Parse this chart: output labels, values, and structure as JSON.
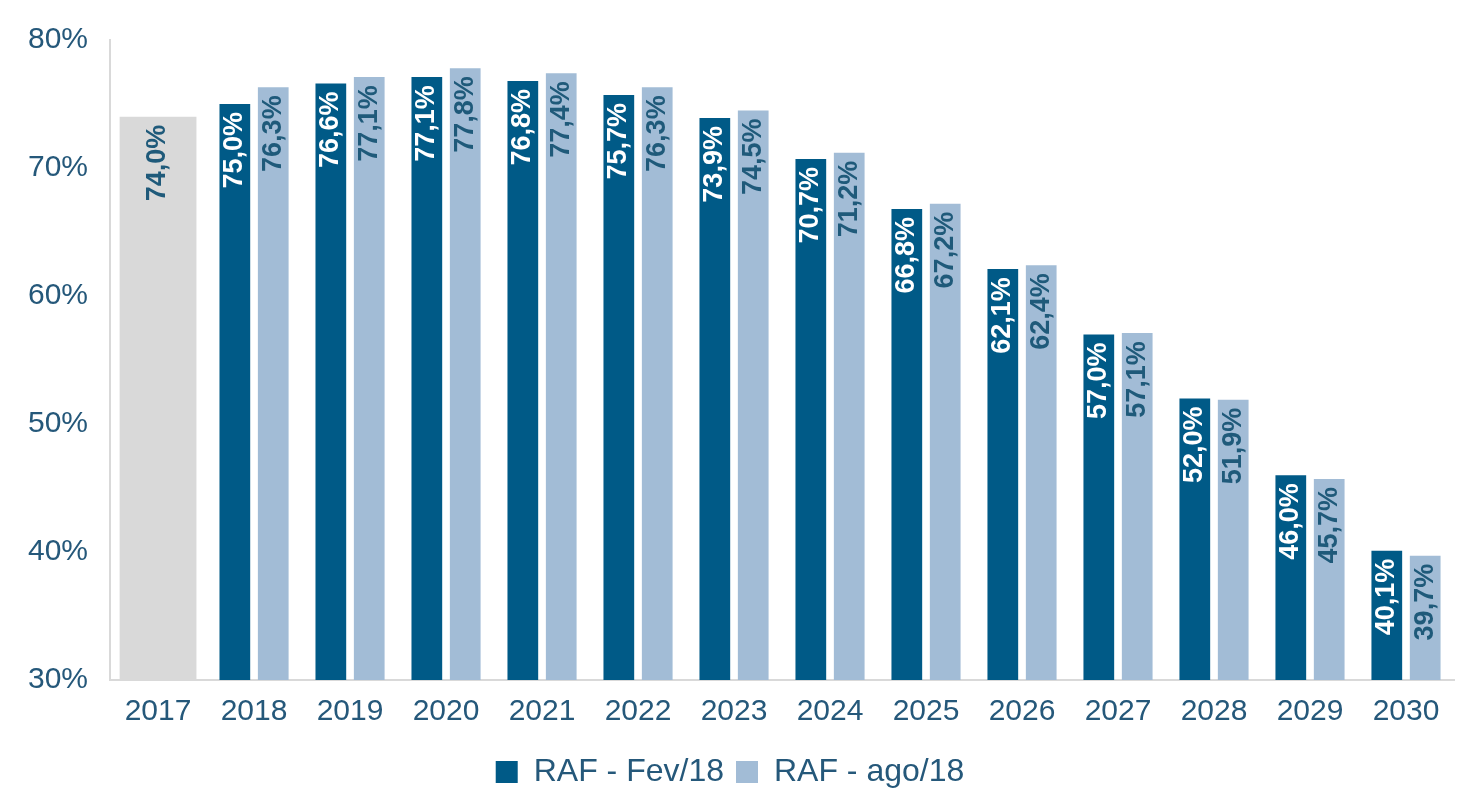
{
  "chart_data": {
    "type": "bar",
    "categories": [
      "2017",
      "2018",
      "2019",
      "2020",
      "2021",
      "2022",
      "2023",
      "2024",
      "2025",
      "2026",
      "2027",
      "2028",
      "2029",
      "2030"
    ],
    "series": [
      {
        "color": "#d9d9d9",
        "values": [
          74.0,
          null,
          null,
          null,
          null,
          null,
          null,
          null,
          null,
          null,
          null,
          null,
          null,
          null
        ],
        "value_labels": [
          "74,0%",
          null,
          null,
          null,
          null,
          null,
          null,
          null,
          null,
          null,
          null,
          null,
          null,
          null
        ]
      },
      {
        "name": "RAF - Fev/18",
        "color": "#005a87",
        "values": [
          null,
          75.0,
          76.6,
          77.1,
          76.8,
          75.7,
          73.9,
          70.7,
          66.8,
          62.1,
          57.0,
          52.0,
          46.0,
          40.1
        ],
        "value_labels": [
          null,
          "75,0%",
          "76,6%",
          "77,1%",
          "76,8%",
          "75,7%",
          "73,9%",
          "70,7%",
          "66,8%",
          "62,1%",
          "57,0%",
          "52,0%",
          "46,0%",
          "40,1%"
        ]
      },
      {
        "name": "RAF - ago/18",
        "color": "#a2bcd6",
        "values": [
          null,
          76.3,
          77.1,
          77.8,
          77.4,
          76.3,
          74.5,
          71.2,
          67.2,
          62.4,
          57.1,
          51.9,
          45.7,
          39.7
        ],
        "value_labels": [
          null,
          "76,3%",
          "77,1%",
          "77,8%",
          "77,4%",
          "76,3%",
          "74,5%",
          "71,2%",
          "67,2%",
          "62,4%",
          "57,1%",
          "51,9%",
          "45,7%",
          "39,7%"
        ]
      }
    ],
    "ylim": [
      30,
      80
    ],
    "yticks": [
      {
        "value": 30,
        "label": "30%"
      },
      {
        "value": 40,
        "label": "40%"
      },
      {
        "value": 50,
        "label": "50%"
      },
      {
        "value": 60,
        "label": "60%"
      },
      {
        "value": 70,
        "label": "70%"
      },
      {
        "value": 80,
        "label": "80%"
      }
    ],
    "grid": false,
    "legend": "bottom"
  }
}
